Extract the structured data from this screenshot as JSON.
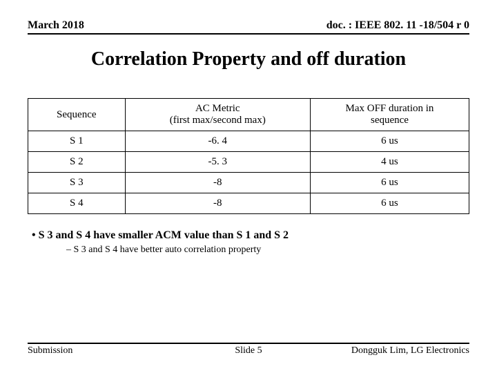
{
  "header": {
    "left": "March 2018",
    "right": "doc. : IEEE 802. 11 -18/504 r 0"
  },
  "title": "Correlation Property and off duration",
  "table": {
    "columns": [
      {
        "label": "Sequence",
        "width": "22%"
      },
      {
        "label": "AC Metric\n(first max/second max)",
        "width": "42%"
      },
      {
        "label": "Max OFF duration in\nsequence",
        "width": "36%"
      }
    ],
    "rows": [
      [
        "S 1",
        "-6. 4",
        "6 us"
      ],
      [
        "S 2",
        "-5. 3",
        "4 us"
      ],
      [
        "S 3",
        "-8",
        "6 us"
      ],
      [
        "S 4",
        "-8",
        "6 us"
      ]
    ],
    "border_color": "#000000",
    "font_size": 15
  },
  "bullets": {
    "main": "S 3 and S 4 have smaller ACM value than S 1 and S 2",
    "sub": "S 3 and S 4 have better auto correlation property"
  },
  "footer": {
    "left": "Submission",
    "center": "Slide 5",
    "right": "Dongguk Lim, LG Electronics"
  }
}
